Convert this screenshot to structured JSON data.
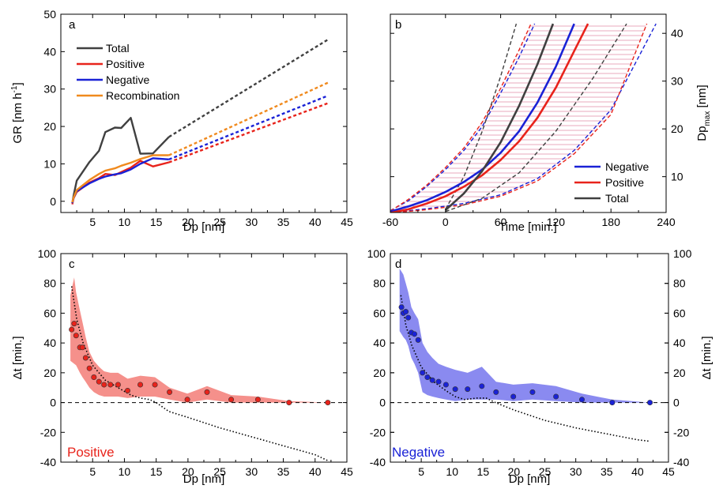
{
  "chart_data": [
    {
      "panel": "a",
      "type": "line",
      "xlabel": "Dp [nm]",
      "ylabel": "GR [nm h",
      "ylabel_sup": "-1",
      "ylabel_end": "]",
      "xlim": [
        0,
        45
      ],
      "ylim": [
        -3,
        50
      ],
      "xticks": [
        5,
        10,
        15,
        20,
        25,
        30,
        35,
        40,
        45
      ],
      "yticks": [
        0,
        10,
        20,
        30,
        40,
        50
      ],
      "legend_position": "top-left",
      "series": [
        {
          "name": "Total",
          "color": "#404040",
          "x": [
            1.8,
            2.0,
            2.5,
            4.5,
            6.0,
            7.0,
            8.5,
            9.5,
            11.0,
            12.5,
            14.5,
            17.0
          ],
          "y": [
            -0.5,
            1.5,
            5.5,
            10.5,
            13.5,
            18.5,
            19.7,
            19.6,
            22.3,
            12.7,
            12.8,
            17.2
          ]
        },
        {
          "name": "Positive",
          "color": "#e8231b",
          "x": [
            1.8,
            2.0,
            2.5,
            4.5,
            6.0,
            7.0,
            8.5,
            9.5,
            11.0,
            12.5,
            14.5,
            17.0
          ],
          "y": [
            -0.8,
            0.8,
            2.5,
            5.0,
            6.2,
            7.3,
            7.0,
            7.8,
            9.0,
            10.8,
            9.3,
            10.4
          ]
        },
        {
          "name": "Negative",
          "color": "#1a22d6",
          "x": [
            1.8,
            2.0,
            2.5,
            4.5,
            6.0,
            7.0,
            8.5,
            9.5,
            11.0,
            12.5,
            14.5,
            17.0
          ],
          "y": [
            -0.5,
            0.9,
            2.7,
            4.8,
            6.0,
            6.6,
            7.2,
            7.5,
            8.5,
            10.0,
            11.5,
            11.2
          ]
        },
        {
          "name": "Recombination",
          "color": "#f08a1e",
          "x": [
            1.8,
            2.0,
            2.5,
            4.5,
            6.0,
            7.0,
            8.5,
            9.5,
            11.0,
            12.5,
            14.5,
            17.0
          ],
          "y": [
            -0.3,
            1.0,
            3.0,
            5.7,
            7.3,
            8.2,
            8.8,
            9.5,
            10.3,
            11.3,
            12.3,
            12.3
          ]
        }
      ],
      "extrapolations": [
        {
          "of": "Total",
          "x": [
            17,
            42
          ],
          "y": [
            17.2,
            43.2
          ]
        },
        {
          "of": "Positive",
          "x": [
            17,
            42
          ],
          "y": [
            10.4,
            26.2
          ]
        },
        {
          "of": "Negative",
          "x": [
            17,
            42
          ],
          "y": [
            11.2,
            28.2
          ]
        },
        {
          "of": "Recombination",
          "x": [
            17,
            42
          ],
          "y": [
            12.3,
            31.7
          ]
        }
      ]
    },
    {
      "panel": "b",
      "type": "line",
      "xlabel": "Time [min.]",
      "ylabel": "Dp",
      "ylabel_sub": "max",
      "ylabel_end": " [nm]",
      "xlim": [
        -60,
        240
      ],
      "ylim": [
        2.5,
        44
      ],
      "xticks": [
        -60,
        0,
        60,
        120,
        180,
        240
      ],
      "yticks": [
        10,
        20,
        30,
        40
      ],
      "legend_position": "bottom-right",
      "series": [
        {
          "name": "Negative",
          "color": "#1a22d6",
          "t": [
            -60,
            -40,
            -20,
            0,
            20,
            40,
            60,
            80,
            100,
            120,
            140
          ],
          "d": [
            2.7,
            3.8,
            5.1,
            6.8,
            8.9,
            11.5,
            15.0,
            19.5,
            25.5,
            33.0,
            42.0
          ]
        },
        {
          "name": "Positive",
          "color": "#e8231b",
          "t": [
            -60,
            -40,
            -20,
            0,
            20,
            40,
            60,
            80,
            100,
            120,
            140,
            155
          ],
          "d": [
            2.4,
            3.2,
            4.4,
            5.9,
            7.9,
            10.3,
            13.5,
            17.4,
            22.3,
            28.6,
            36.3,
            42.0
          ]
        },
        {
          "name": "Total",
          "color": "#404040",
          "t": [
            0,
            20,
            40,
            60,
            80,
            100,
            117
          ],
          "d": [
            3.0,
            6.5,
            11.2,
            17.2,
            24.8,
            33.5,
            42.0
          ]
        }
      ],
      "bands": [
        {
          "color": "#1a22d6",
          "lower": {
            "t": [
              -60,
              -20,
              20,
              60,
              100,
              140,
              180,
              229
            ],
            "d": [
              2.5,
              3.3,
              4.4,
              6.2,
              9.6,
              15.5,
              24.0,
              42.0
            ]
          },
          "upper": {
            "t": [
              -60,
              -40,
              -20,
              0,
              20,
              40,
              60,
              80,
              97
            ],
            "d": [
              2.9,
              5.0,
              8.0,
              11.5,
              15.5,
              20.5,
              27.5,
              35.0,
              42.0
            ]
          }
        },
        {
          "color": "#e8231b",
          "lower": {
            "t": [
              -60,
              -20,
              20,
              60,
              100,
              140,
              180,
              219
            ],
            "d": [
              2.4,
              3.1,
              4.1,
              5.9,
              9.1,
              14.8,
              23.0,
              42.0
            ]
          },
          "upper": {
            "t": [
              -60,
              -40,
              -20,
              0,
              20,
              40,
              60,
              80,
              93
            ],
            "d": [
              2.8,
              5.3,
              8.3,
              11.9,
              16.0,
              21.4,
              28.5,
              36.5,
              42.0
            ]
          }
        },
        {
          "color": "#404040",
          "lower": {
            "t": [
              0,
              40,
              80,
              120,
              160,
              197
            ],
            "d": [
              2.7,
              5.5,
              10.8,
              19.5,
              30.5,
              42.0
            ]
          },
          "upper": {
            "t": [
              0,
              20,
              40,
              60,
              77
            ],
            "d": [
              3.2,
              10.0,
              19.5,
              31.0,
              42.0
            ]
          }
        }
      ]
    },
    {
      "panel": "c",
      "type": "scatter",
      "xlabel": "Dp [nm]",
      "ylabel": "Δt [min.]",
      "xlim": [
        0,
        45
      ],
      "ylim": [
        -40,
        100
      ],
      "xticks": [
        5,
        10,
        15,
        20,
        25,
        30,
        35,
        40,
        45
      ],
      "yticks": [
        -40,
        -20,
        0,
        20,
        40,
        60,
        80,
        100
      ],
      "corner_label": "Positive",
      "color": "#e8231b",
      "band_color": "#f5908b",
      "points": {
        "x": [
          1.7,
          2.1,
          2.4,
          3.0,
          3.4,
          3.9,
          4.5,
          5.2,
          6.0,
          6.8,
          7.8,
          9.0,
          10.5,
          12.5,
          14.8,
          17.1,
          19.9,
          23.0,
          26.8,
          31.0,
          35.9,
          42.0
        ],
        "y": [
          49,
          53,
          45,
          37,
          37,
          30,
          23,
          17,
          14,
          12,
          12,
          12,
          8,
          12,
          12,
          7,
          2,
          7,
          2,
          2,
          0,
          0
        ]
      },
      "band": {
        "x": [
          1.5,
          2.1,
          2.4,
          3.0,
          3.4,
          3.9,
          4.5,
          5.2,
          6.0,
          6.8,
          7.8,
          9.0,
          10.5,
          12.5,
          14.8,
          17.1,
          19.9,
          23.0,
          26.8,
          31.0,
          35.9,
          42.0
        ],
        "lower": [
          28,
          26,
          25,
          20,
          17,
          14,
          10,
          7,
          5,
          4,
          4,
          4,
          3,
          4,
          4,
          2,
          0,
          2,
          0,
          0,
          0,
          0
        ],
        "upper": [
          72,
          84,
          74,
          62,
          54,
          44,
          34,
          28,
          24,
          21,
          20,
          20,
          16,
          18,
          17,
          10,
          6,
          11,
          5,
          4,
          1,
          0
        ]
      },
      "trend": {
        "x": [
          1.7,
          2.5,
          3.5,
          5,
          7,
          9,
          11,
          12.5,
          14,
          15,
          17,
          20,
          25,
          30,
          35,
          40,
          42
        ],
        "y": [
          78,
          56,
          40,
          25,
          15,
          10,
          5,
          3,
          2,
          0,
          -6,
          -10,
          -17,
          -23,
          -29,
          -35,
          -39
        ]
      }
    },
    {
      "panel": "d",
      "type": "scatter",
      "xlabel": "Dp [nm]",
      "ylabel": "Δt [min.]",
      "xlim": [
        0,
        45
      ],
      "ylim": [
        -40,
        100
      ],
      "xticks": [
        5,
        10,
        15,
        20,
        25,
        30,
        35,
        40,
        45
      ],
      "yticks": [
        -40,
        -20,
        0,
        20,
        40,
        60,
        80,
        100
      ],
      "corner_label": "Negative",
      "color": "#1a22d6",
      "band_color": "#8a8af0",
      "points": {
        "x": [
          1.8,
          2.1,
          2.5,
          2.9,
          3.4,
          3.9,
          4.5,
          5.2,
          6.0,
          6.8,
          7.8,
          9.0,
          10.5,
          12.5,
          14.8,
          17.1,
          19.9,
          23.0,
          26.8,
          31.0,
          35.9,
          42.0
        ],
        "y": [
          64,
          60,
          61,
          57,
          47,
          46,
          42,
          20,
          17,
          15,
          14,
          12,
          9,
          9,
          11,
          7,
          4,
          7,
          4,
          2,
          0,
          0
        ]
      },
      "band": {
        "x": [
          1.5,
          2.1,
          2.5,
          2.9,
          3.4,
          3.9,
          4.5,
          5.2,
          6.0,
          6.8,
          7.8,
          9.0,
          10.5,
          12.5,
          14.8,
          17.1,
          19.9,
          23.0,
          26.8,
          31.0,
          35.9,
          42.0
        ],
        "lower": [
          48,
          44,
          42,
          38,
          30,
          26,
          20,
          7,
          5,
          4,
          3,
          2,
          1,
          2,
          2,
          2,
          1,
          2,
          1,
          0,
          0,
          0
        ],
        "upper": [
          90,
          86,
          80,
          74,
          64,
          60,
          56,
          40,
          34,
          30,
          26,
          24,
          22,
          20,
          24,
          14,
          12,
          13,
          11,
          6,
          2,
          0
        ]
      },
      "trend": {
        "x": [
          1.7,
          2.5,
          3.5,
          5,
          7,
          9,
          10.5,
          12,
          14,
          15.5,
          17,
          20,
          25,
          30,
          35,
          40,
          42
        ],
        "y": [
          72,
          52,
          38,
          24,
          14,
          8,
          4,
          2,
          3,
          3,
          0,
          -5,
          -12,
          -17,
          -21,
          -25,
          -26
        ]
      }
    }
  ]
}
